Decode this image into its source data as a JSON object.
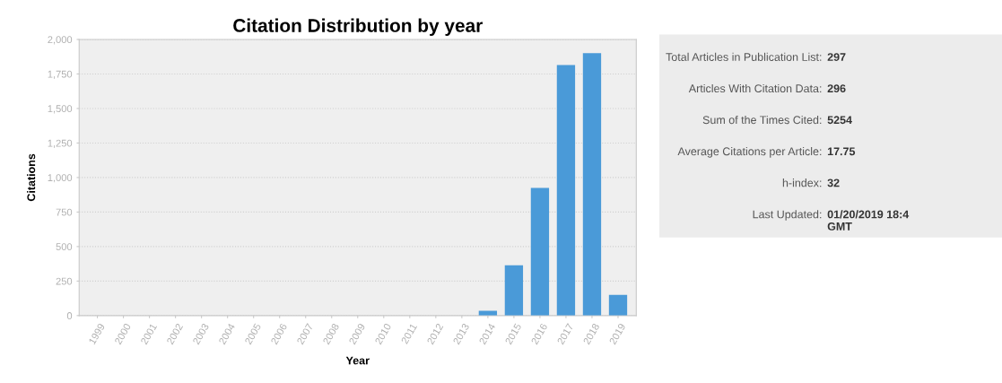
{
  "chart_data": [
    {
      "type": "bar",
      "title": "Citation Distribution by year",
      "xlabel": "Year",
      "ylabel": "Citations",
      "categories": [
        "1999",
        "2000",
        "2001",
        "2002",
        "2003",
        "2004",
        "2005",
        "2006",
        "2007",
        "2008",
        "2009",
        "2010",
        "2011",
        "2012",
        "2013",
        "2014",
        "2015",
        "2016",
        "2017",
        "2018",
        "2019"
      ],
      "values": [
        0,
        0,
        0,
        0,
        0,
        0,
        0,
        0,
        0,
        0,
        0,
        0,
        0,
        0,
        0,
        35,
        365,
        925,
        1815,
        1900,
        150
      ],
      "color": "#4a9ad8",
      "ylim": [
        0,
        2000
      ],
      "yticks": [
        {
          "value": 0,
          "label": "0"
        },
        {
          "value": 250,
          "label": "250"
        },
        {
          "value": 500,
          "label": "500"
        },
        {
          "value": 750,
          "label": "750"
        },
        {
          "value": 1000,
          "label": "1,000"
        },
        {
          "value": 1250,
          "label": "1,250"
        },
        {
          "value": 1500,
          "label": "1,500"
        },
        {
          "value": 1750,
          "label": "1,750"
        },
        {
          "value": 2000,
          "label": "2,000"
        }
      ],
      "grid": "y"
    },
    {
      "type": "other",
      "annotations": [
        "Total Articles in Publication List: 297",
        "Articles With Citation Data: 296",
        "Sum of the Times Cited: 5254",
        "Average Citations per Article: 17.75",
        "h-index: 32",
        "Last Updated: 01/20/2019 18:4\nGMT"
      ]
    }
  ]
}
